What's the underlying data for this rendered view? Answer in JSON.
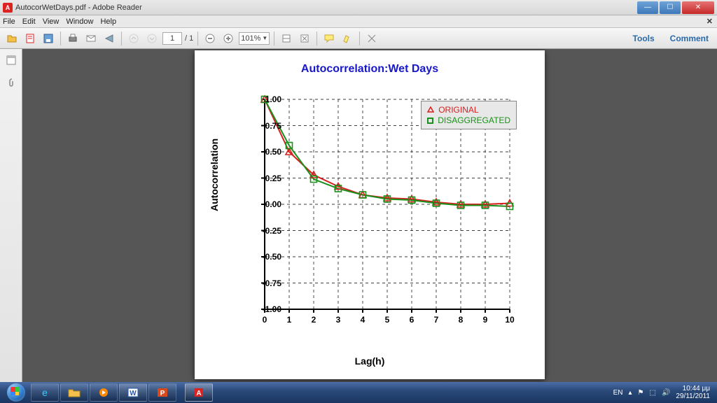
{
  "title": {
    "filename": "AutocorWetDays.pdf",
    "app": "Adobe Reader"
  },
  "menu": [
    "File",
    "Edit",
    "View",
    "Window",
    "Help"
  ],
  "toolbar": {
    "page_current": "1",
    "page_total": "1",
    "zoom": "101%",
    "right": {
      "tools": "Tools",
      "comment": "Comment"
    }
  },
  "chart": {
    "title": "Autocorrelation:Wet Days",
    "ylabel": "Autocorrelation",
    "xlabel": "Lag(h)",
    "y_ticks": [
      -1.0,
      -0.75,
      -0.5,
      -0.25,
      0.0,
      0.25,
      0.5,
      0.75,
      1.0
    ],
    "x_ticks": [
      0,
      1,
      2,
      3,
      4,
      5,
      6,
      7,
      8,
      9,
      10
    ],
    "legend": {
      "a": "ORIGINAL",
      "b": "DISAGGREGATED"
    },
    "colors": {
      "orig": "#d81e1e",
      "disagg": "#1a8f1a",
      "title": "#1818c8",
      "grid": "#000"
    },
    "series_original": [
      1.0,
      0.5,
      0.28,
      0.17,
      0.09,
      0.06,
      0.05,
      0.02,
      0.0,
      0.0,
      0.01
    ],
    "series_disagg": [
      1.0,
      0.56,
      0.24,
      0.15,
      0.09,
      0.05,
      0.04,
      0.01,
      -0.01,
      -0.01,
      -0.02
    ]
  },
  "tray": {
    "lang": "EN",
    "time": "10:44 μμ",
    "date": "29/11/2011"
  }
}
